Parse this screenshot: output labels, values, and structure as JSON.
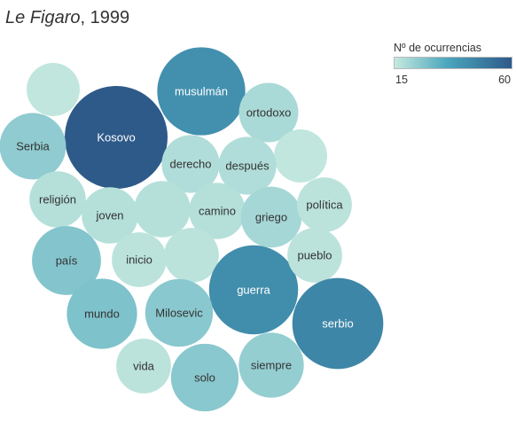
{
  "title": {
    "source": "Le Figaro",
    "rest": ", 1999"
  },
  "legend": {
    "title": "Nº de ocurrencias",
    "min": "15",
    "max": "60",
    "colors": [
      "#c6e9df",
      "#4aa6bd",
      "#2e5a8a"
    ]
  },
  "chart_data": {
    "type": "bubble",
    "color_scale": {
      "min": 15,
      "max": 60,
      "colors": [
        "#c6e9df",
        "#4aa6bd",
        "#2e5a8a"
      ]
    },
    "bubbles": [
      {
        "label": "",
        "value": 16
      },
      {
        "label": "Kosovo",
        "value": 60
      },
      {
        "label": "musulmán",
        "value": 44
      },
      {
        "label": "Serbia",
        "value": 25
      },
      {
        "label": "ortodoxo",
        "value": 20
      },
      {
        "label": "",
        "value": 16
      },
      {
        "label": "derecho",
        "value": 19
      },
      {
        "label": "después",
        "value": 19
      },
      {
        "label": "religión",
        "value": 18
      },
      {
        "label": "joven",
        "value": 18
      },
      {
        "label": "",
        "value": 18
      },
      {
        "label": "camino",
        "value": 18
      },
      {
        "label": "griego",
        "value": 21
      },
      {
        "label": "política",
        "value": 17
      },
      {
        "label": "país",
        "value": 27
      },
      {
        "label": "inicio",
        "value": 17
      },
      {
        "label": "",
        "value": 17
      },
      {
        "label": "guerra",
        "value": 45
      },
      {
        "label": "pueblo",
        "value": 17
      },
      {
        "label": "mundo",
        "value": 28
      },
      {
        "label": "Milosevic",
        "value": 26
      },
      {
        "label": "serbio",
        "value": 47
      },
      {
        "label": "vida",
        "value": 17
      },
      {
        "label": "solo",
        "value": 26
      },
      {
        "label": "siempre",
        "value": 24
      }
    ]
  }
}
